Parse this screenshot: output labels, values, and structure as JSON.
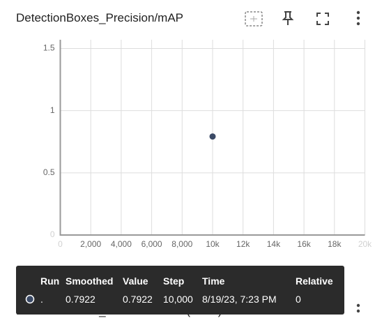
{
  "card": {
    "title": "DetectionBoxes_Precision/mAP"
  },
  "chart_data": {
    "type": "scatter",
    "x": [
      10000
    ],
    "values": [
      0.7922
    ],
    "color": "#3b4a66",
    "xlim": [
      0,
      20000
    ],
    "xticks": [
      0,
      {
        "value": 2000,
        "label": "2,000"
      },
      {
        "value": 4000,
        "label": "4,000"
      },
      {
        "value": 6000,
        "label": "6,000"
      },
      {
        "value": 8000,
        "label": "8,000"
      },
      {
        "value": 10000,
        "label": "10k"
      },
      {
        "value": 12000,
        "label": "12k"
      },
      {
        "value": 14000,
        "label": "14k"
      },
      {
        "value": 16000,
        "label": "16k"
      },
      {
        "value": 18000,
        "label": "18k"
      },
      {
        "value": 20000,
        "label": "20k"
      }
    ],
    "ylim": [
      0,
      1.57
    ],
    "yticks": [
      0,
      0.5,
      1,
      1.5
    ],
    "grid": true
  },
  "tooltip": {
    "headers": [
      "Run",
      "Smoothed",
      "Value",
      "Step",
      "Time",
      "Relative"
    ],
    "row": [
      ".",
      "0.7922",
      "0.7922",
      "10,000",
      "8/19/23, 7:23 PM",
      "0"
    ]
  },
  "next_card": {
    "title": "DetectionBoxes_Precision/mAP (small)"
  }
}
